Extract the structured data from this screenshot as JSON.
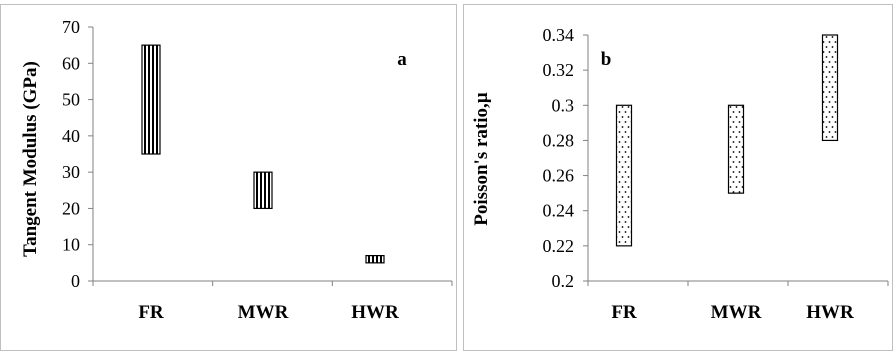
{
  "chart_data": [
    {
      "type": "bar",
      "panel_label": "a",
      "ylabel": "Tangent Modulus (GPa)",
      "categories": [
        "FR",
        "MWR",
        "HWR"
      ],
      "ylim": [
        0,
        70
      ],
      "yticks": [
        "0",
        "10",
        "20",
        "30",
        "40",
        "50",
        "60",
        "70"
      ],
      "ranges": [
        {
          "category": "FR",
          "low": 35,
          "high": 65
        },
        {
          "category": "MWR",
          "low": 20,
          "high": 30
        },
        {
          "category": "HWR",
          "low": 5,
          "high": 7
        }
      ],
      "pattern": "vertical-stripes",
      "grid": false
    },
    {
      "type": "bar",
      "panel_label": "b",
      "ylabel": "Poisson's ratio,µ",
      "categories": [
        "FR",
        "MWR",
        "HWR"
      ],
      "ylim": [
        0.2,
        0.34
      ],
      "yticks": [
        "0.2",
        "0.22",
        "0.24",
        "0.26",
        "0.28",
        "0.3",
        "0.32",
        "0.34"
      ],
      "ranges": [
        {
          "category": "FR",
          "low": 0.22,
          "high": 0.3
        },
        {
          "category": "MWR",
          "low": 0.25,
          "high": 0.3
        },
        {
          "category": "HWR",
          "low": 0.28,
          "high": 0.34
        }
      ],
      "pattern": "dotted",
      "grid": false
    }
  ]
}
